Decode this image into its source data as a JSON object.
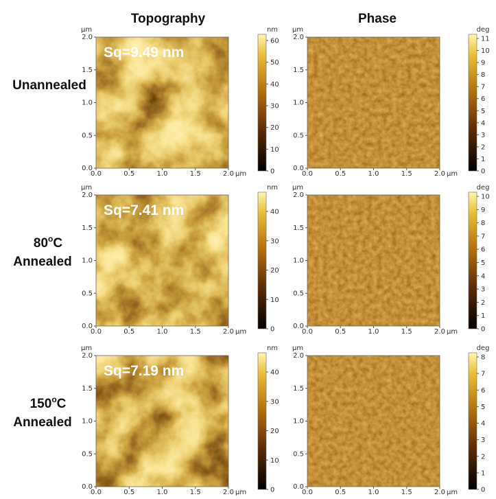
{
  "column_titles": [
    "Topography",
    "Phase"
  ],
  "axis_unit": "µm",
  "axis_ticks": [
    "0.0",
    "0.5",
    "1.0",
    "1.5",
    "2.0"
  ],
  "rows": [
    {
      "label": {
        "line1": "Unannealed"
      },
      "sq": "Sq=9.49 nm",
      "topography": {
        "unit": "nm",
        "ticks": [
          0,
          10,
          20,
          30,
          40,
          50,
          60
        ]
      },
      "phase": {
        "unit": "deg",
        "ticks": [
          0,
          1,
          2,
          3,
          4,
          5,
          6,
          7,
          8,
          9,
          10,
          11
        ]
      }
    },
    {
      "label": {
        "main": "80",
        "sup": "o",
        "rest": "C",
        "line2": "Annealed"
      },
      "sq": "Sq=7.41 nm",
      "topography": {
        "unit": "nm",
        "ticks": [
          0,
          10,
          20,
          30,
          40
        ]
      },
      "phase": {
        "unit": "deg",
        "ticks": [
          0,
          1,
          2,
          3,
          4,
          5,
          6,
          7,
          8,
          9,
          10
        ]
      }
    },
    {
      "label": {
        "main": "150",
        "sup": "o",
        "rest": "C",
        "line2": "Annealed"
      },
      "sq": "Sq=7.19 nm",
      "topography": {
        "unit": "nm",
        "ticks": [
          0,
          10,
          20,
          30,
          40
        ]
      },
      "phase": {
        "unit": "deg",
        "ticks": [
          0,
          1,
          2,
          3,
          4,
          5,
          6,
          7,
          8
        ]
      }
    }
  ]
}
